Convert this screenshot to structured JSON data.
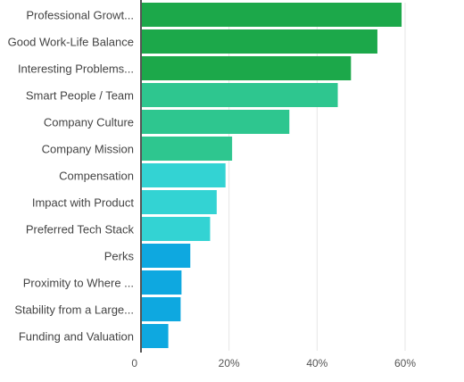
{
  "chart_data": {
    "type": "bar",
    "orientation": "horizontal",
    "categories": [
      "Professional Growt...",
      "Good Work-Life Balance",
      "Interesting Problems...",
      "Smart People / Team",
      "Company Culture",
      "Company Mission",
      "Compensation",
      "Impact with Product",
      "Preferred Tech Stack",
      "Perks",
      "Proximity to Where ...",
      "Stability from a Large...",
      "Funding and Valuation"
    ],
    "values": [
      59,
      53.5,
      47.5,
      44.5,
      33.5,
      20.5,
      19,
      17,
      15.5,
      11,
      9,
      8.8,
      6
    ],
    "colors": [
      "#1ca84a",
      "#1ca84a",
      "#1ca84a",
      "#2ec68f",
      "#2ec68f",
      "#2ec68f",
      "#33d3d3",
      "#33d3d3",
      "#33d3d3",
      "#0ea8e0",
      "#0ea8e0",
      "#0ea8e0",
      "#0ea8e0"
    ],
    "x_ticks": [
      {
        "value": 0,
        "label": "0"
      },
      {
        "value": 20,
        "label": "20%"
      },
      {
        "value": 40,
        "label": "40%"
      },
      {
        "value": 60,
        "label": "60%"
      }
    ],
    "xlim": [
      0,
      70
    ],
    "grid": true,
    "title": "",
    "xlabel": "",
    "ylabel": ""
  }
}
